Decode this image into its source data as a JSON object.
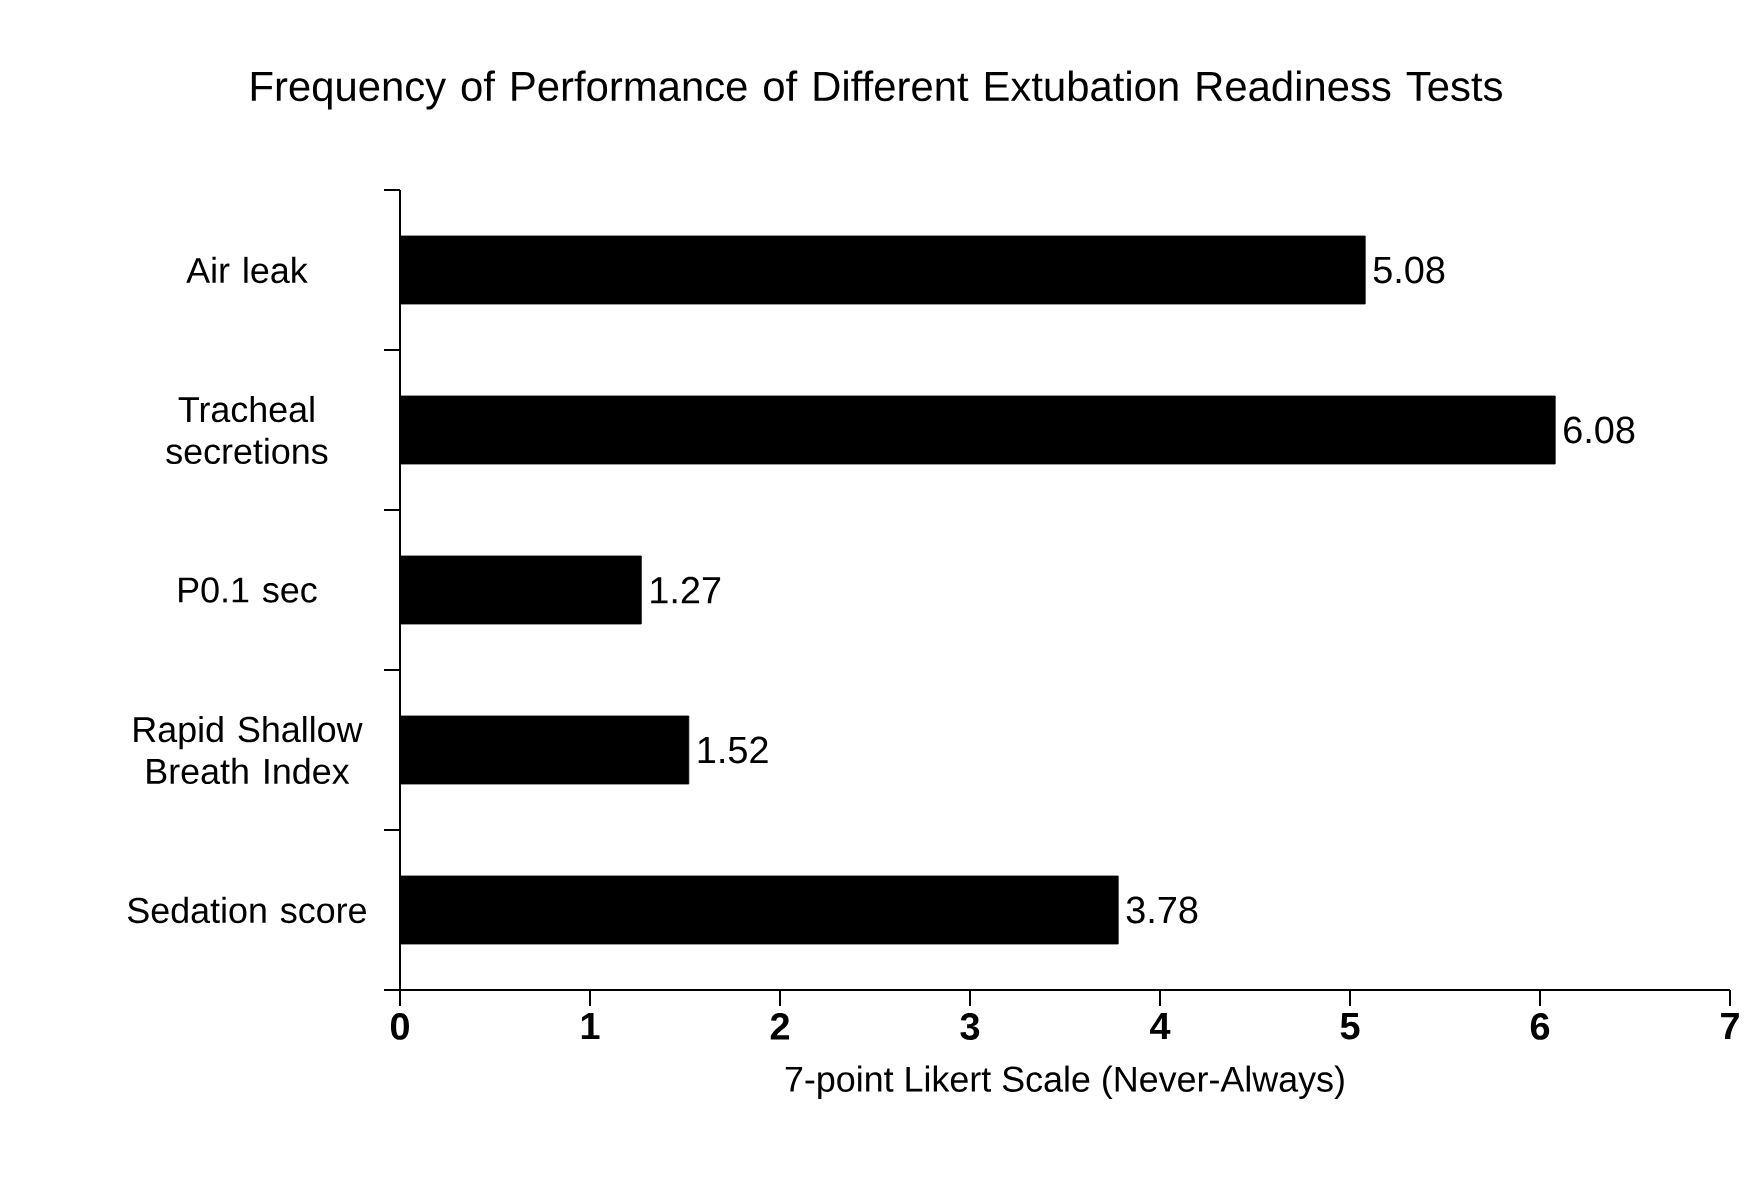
{
  "chart_data": {
    "type": "bar",
    "orientation": "horizontal",
    "title": "Frequency of Performance of Different Extubation Readiness Tests",
    "xlabel": "7-point Likert Scale (Never-Always)",
    "categories": [
      "Air leak",
      "Tracheal secretions",
      "P0.1 sec",
      "Rapid Shallow Breath Index",
      "Sedation score"
    ],
    "values": [
      5.08,
      6.08,
      1.27,
      1.52,
      3.78
    ],
    "color": "#000000",
    "data_labels": true,
    "xlim": [
      0,
      7
    ],
    "xticks": [
      0,
      1,
      2,
      3,
      4,
      5,
      6,
      7
    ]
  }
}
